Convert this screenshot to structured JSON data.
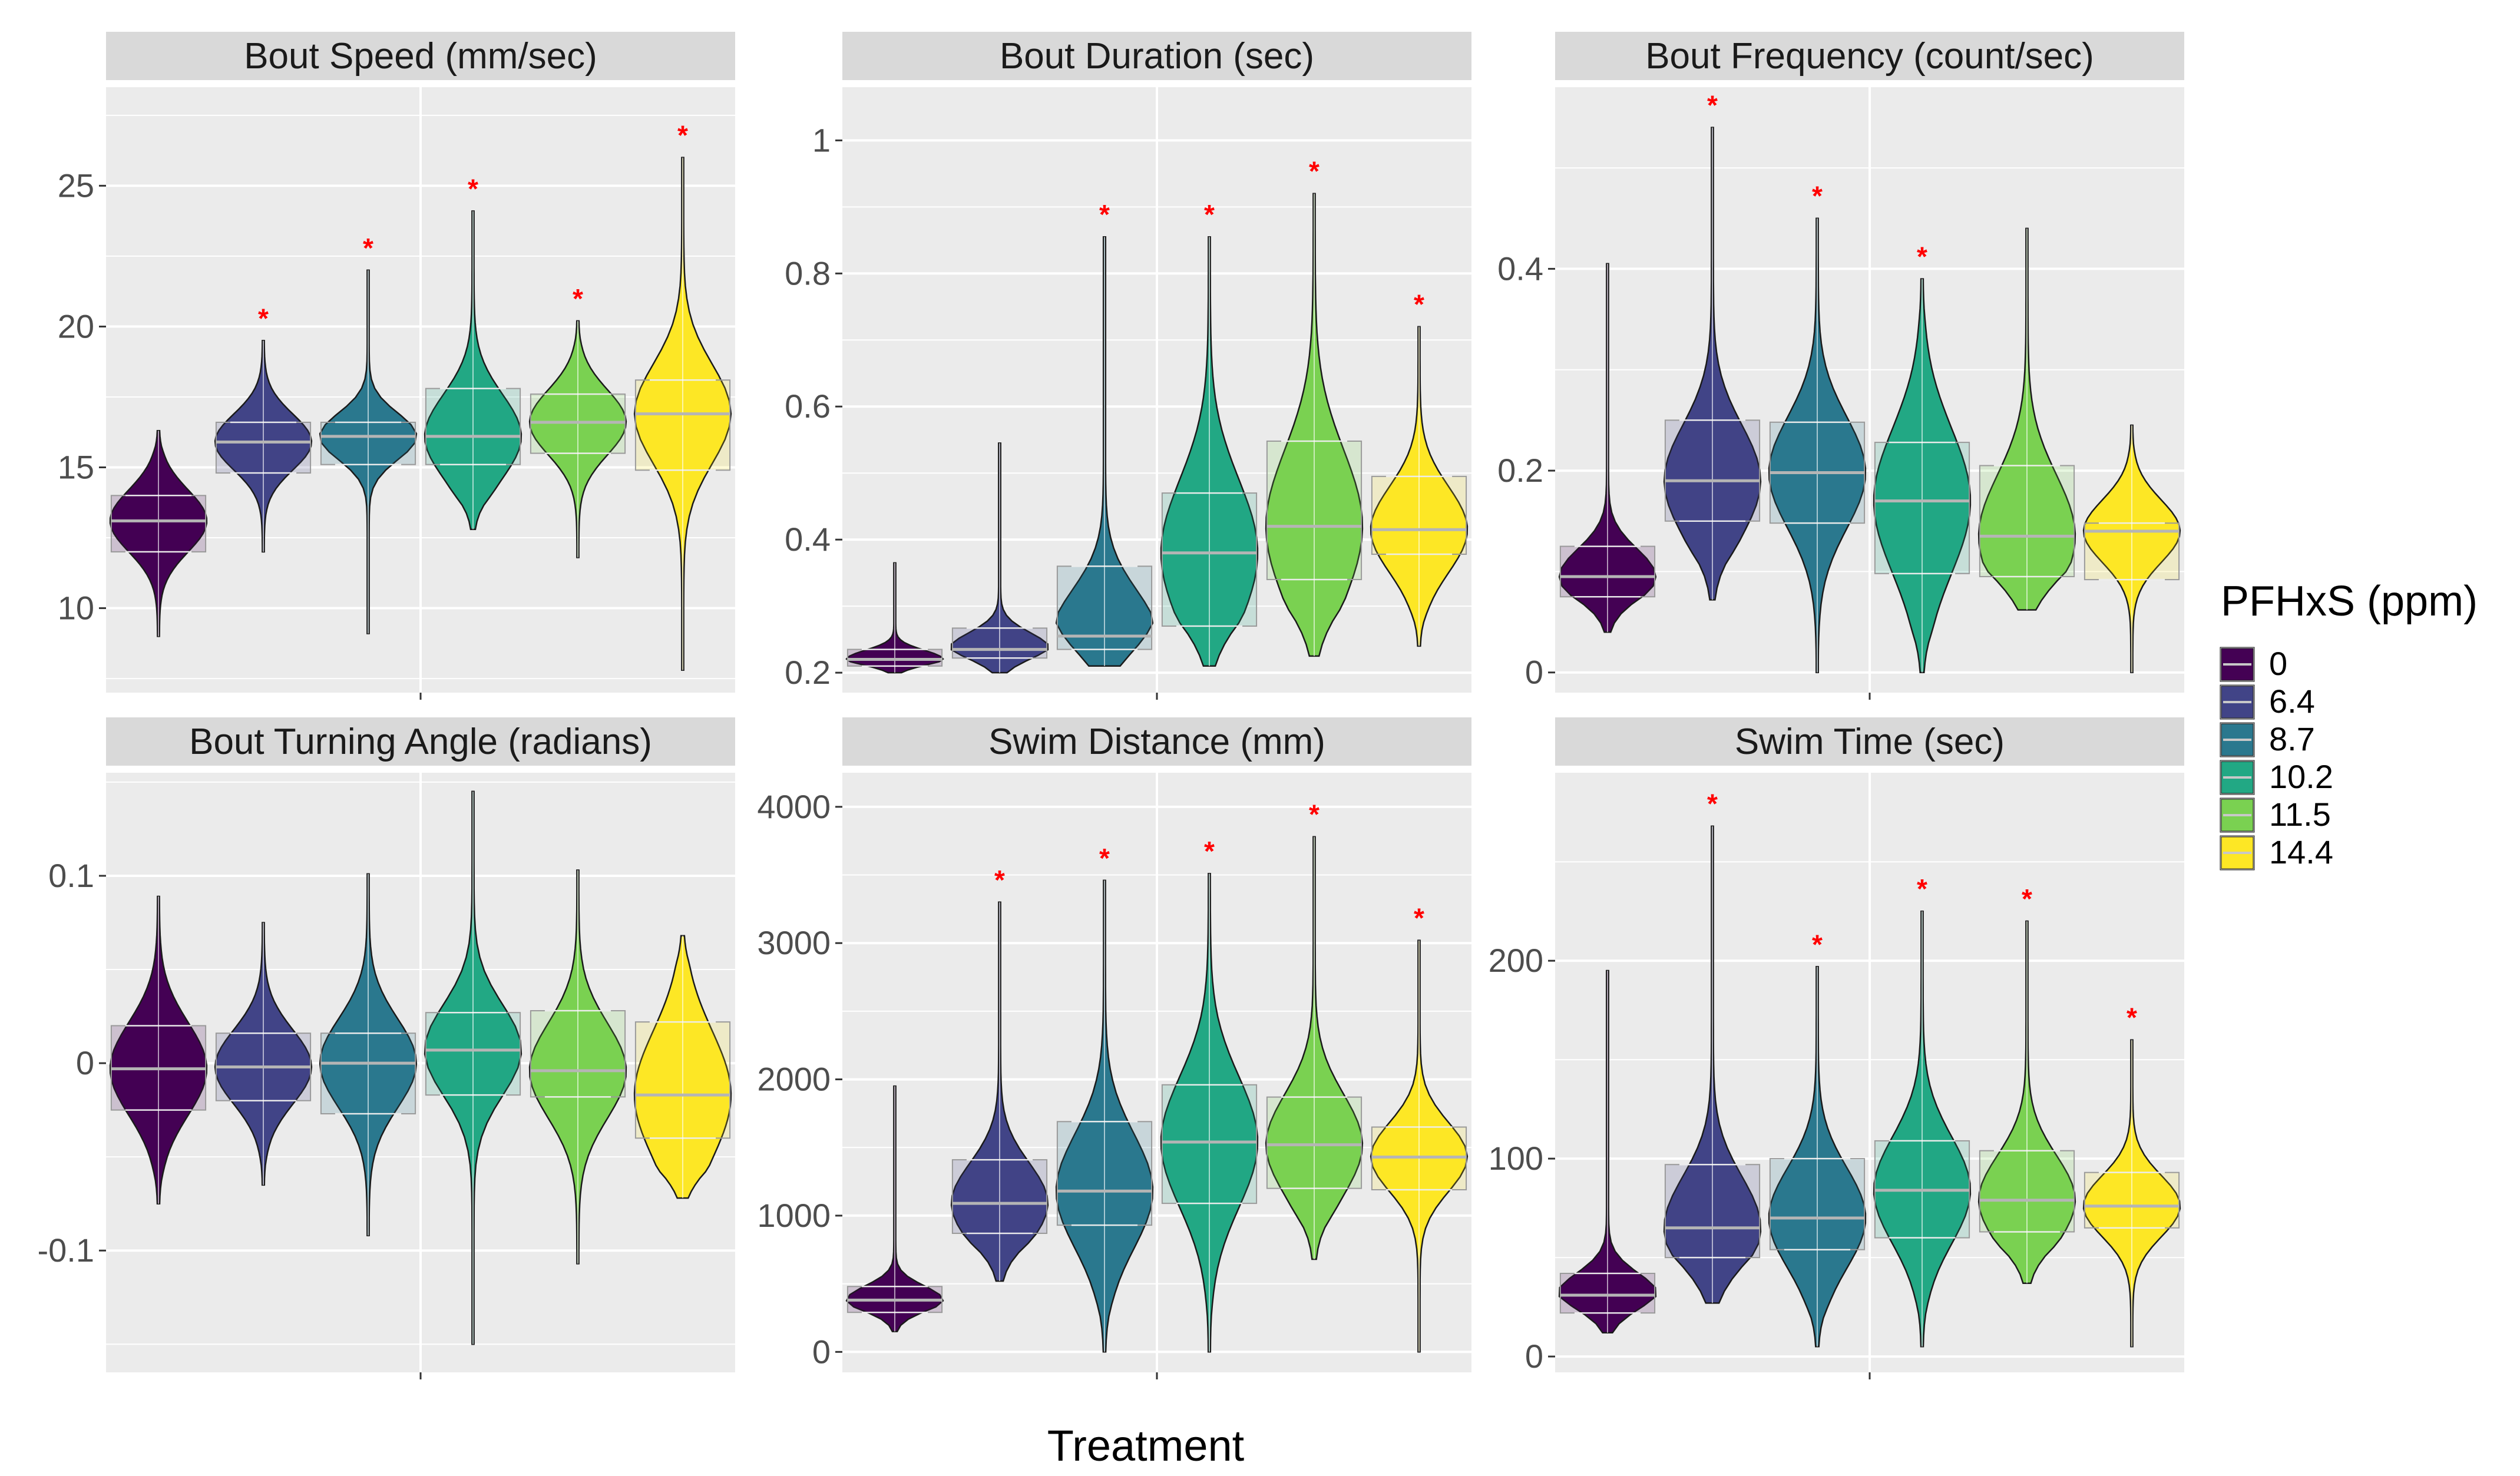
{
  "figure": {
    "xlabel": "Treatment",
    "legend": {
      "title": "PFHxS (ppm)",
      "entries": [
        {
          "label": "0",
          "color": "#440154"
        },
        {
          "label": "6.4",
          "color": "#414487"
        },
        {
          "label": "8.7",
          "color": "#2a788e"
        },
        {
          "label": "10.2",
          "color": "#22a884"
        },
        {
          "label": "11.5",
          "color": "#7ad151"
        },
        {
          "label": "14.4",
          "color": "#fde725"
        }
      ]
    },
    "significance_marker": "*"
  },
  "chart_data": [
    {
      "type": "violin",
      "title": "Bout Speed (mm/sec)",
      "ylim": [
        7,
        28.5
      ],
      "yticks": [
        10,
        15,
        20,
        25
      ],
      "groups": [
        "0",
        "6.4",
        "8.7",
        "10.2",
        "11.5",
        "14.4"
      ],
      "series": [
        {
          "group": "0",
          "min": 9.0,
          "q1": 12.0,
          "median": 13.1,
          "q3": 14.0,
          "max": 16.3,
          "significant": false
        },
        {
          "group": "6.4",
          "min": 12.0,
          "q1": 14.8,
          "median": 15.9,
          "q3": 16.6,
          "max": 19.5,
          "significant": true
        },
        {
          "group": "8.7",
          "min": 9.1,
          "q1": 15.1,
          "median": 16.1,
          "q3": 16.6,
          "max": 22.0,
          "significant": true
        },
        {
          "group": "10.2",
          "min": 12.8,
          "q1": 15.1,
          "median": 16.1,
          "q3": 17.8,
          "max": 24.1,
          "significant": true
        },
        {
          "group": "11.5",
          "min": 11.8,
          "q1": 15.5,
          "median": 16.6,
          "q3": 17.6,
          "max": 20.2,
          "significant": true
        },
        {
          "group": "14.4",
          "min": 7.8,
          "q1": 14.9,
          "median": 16.9,
          "q3": 18.1,
          "max": 26.0,
          "significant": true
        }
      ]
    },
    {
      "type": "violin",
      "title": "Bout Duration (sec)",
      "ylim": [
        0.17,
        1.08
      ],
      "yticks": [
        0.2,
        0.4,
        0.6,
        0.8,
        1
      ],
      "groups": [
        "0",
        "6.4",
        "8.7",
        "10.2",
        "11.5",
        "14.4"
      ],
      "series": [
        {
          "group": "0",
          "min": 0.2,
          "q1": 0.21,
          "median": 0.22,
          "q3": 0.235,
          "max": 0.365,
          "significant": false
        },
        {
          "group": "6.4",
          "min": 0.2,
          "q1": 0.222,
          "median": 0.235,
          "q3": 0.267,
          "max": 0.545,
          "significant": false
        },
        {
          "group": "8.7",
          "min": 0.21,
          "q1": 0.235,
          "median": 0.255,
          "q3": 0.36,
          "max": 0.855,
          "significant": true
        },
        {
          "group": "10.2",
          "min": 0.21,
          "q1": 0.27,
          "median": 0.38,
          "q3": 0.47,
          "max": 0.855,
          "significant": true
        },
        {
          "group": "11.5",
          "min": 0.225,
          "q1": 0.34,
          "median": 0.42,
          "q3": 0.548,
          "max": 0.92,
          "significant": true
        },
        {
          "group": "14.4",
          "min": 0.24,
          "q1": 0.378,
          "median": 0.415,
          "q3": 0.495,
          "max": 0.72,
          "significant": true
        }
      ]
    },
    {
      "type": "violin",
      "title": "Bout Frequency (count/sec)",
      "ylim": [
        -0.02,
        0.58
      ],
      "yticks": [
        0,
        0.2,
        0.4
      ],
      "groups": [
        "0",
        "6.4",
        "8.7",
        "10.2",
        "11.5",
        "14.4"
      ],
      "series": [
        {
          "group": "0",
          "min": 0.04,
          "q1": 0.075,
          "median": 0.095,
          "q3": 0.125,
          "max": 0.405,
          "significant": false
        },
        {
          "group": "6.4",
          "min": 0.072,
          "q1": 0.15,
          "median": 0.19,
          "q3": 0.25,
          "max": 0.54,
          "significant": true
        },
        {
          "group": "8.7",
          "min": 0.0,
          "q1": 0.148,
          "median": 0.198,
          "q3": 0.248,
          "max": 0.45,
          "significant": true
        },
        {
          "group": "10.2",
          "min": 0.0,
          "q1": 0.098,
          "median": 0.17,
          "q3": 0.228,
          "max": 0.39,
          "significant": true
        },
        {
          "group": "11.5",
          "min": 0.062,
          "q1": 0.095,
          "median": 0.135,
          "q3": 0.205,
          "max": 0.44,
          "significant": false
        },
        {
          "group": "14.4",
          "min": 0.0,
          "q1": 0.092,
          "median": 0.14,
          "q3": 0.148,
          "max": 0.245,
          "significant": false
        }
      ]
    },
    {
      "type": "violin",
      "title": "Bout Turning Angle (radians)",
      "ylim": [
        -0.165,
        0.155
      ],
      "yticks": [
        -0.1,
        0,
        0.1
      ],
      "groups": [
        "0",
        "6.4",
        "8.7",
        "10.2",
        "11.5",
        "14.4"
      ],
      "series": [
        {
          "group": "0",
          "min": -0.075,
          "q1": -0.025,
          "median": -0.003,
          "q3": 0.02,
          "max": 0.089,
          "significant": false
        },
        {
          "group": "6.4",
          "min": -0.065,
          "q1": -0.02,
          "median": -0.002,
          "q3": 0.016,
          "max": 0.075,
          "significant": false
        },
        {
          "group": "8.7",
          "min": -0.092,
          "q1": -0.027,
          "median": 0.0,
          "q3": 0.016,
          "max": 0.101,
          "significant": false
        },
        {
          "group": "10.2",
          "min": -0.15,
          "q1": -0.017,
          "median": 0.007,
          "q3": 0.027,
          "max": 0.145,
          "significant": false
        },
        {
          "group": "11.5",
          "min": -0.107,
          "q1": -0.018,
          "median": -0.004,
          "q3": 0.028,
          "max": 0.103,
          "significant": false
        },
        {
          "group": "14.4",
          "min": -0.072,
          "q1": -0.04,
          "median": -0.017,
          "q3": 0.022,
          "max": 0.068,
          "significant": false
        }
      ]
    },
    {
      "type": "violin",
      "title": "Swim Distance (mm)",
      "ylim": [
        -150,
        4250
      ],
      "yticks": [
        0,
        1000,
        2000,
        3000,
        4000
      ],
      "groups": [
        "0",
        "6.4",
        "8.7",
        "10.2",
        "11.5",
        "14.4"
      ],
      "series": [
        {
          "group": "0",
          "min": 150,
          "q1": 290,
          "median": 380,
          "q3": 480,
          "max": 1950,
          "significant": false
        },
        {
          "group": "6.4",
          "min": 520,
          "q1": 870,
          "median": 1090,
          "q3": 1410,
          "max": 3300,
          "significant": true
        },
        {
          "group": "8.7",
          "min": 0,
          "q1": 930,
          "median": 1180,
          "q3": 1690,
          "max": 3460,
          "significant": true
        },
        {
          "group": "10.2",
          "min": 0,
          "q1": 1090,
          "median": 1540,
          "q3": 1960,
          "max": 3510,
          "significant": true
        },
        {
          "group": "11.5",
          "min": 680,
          "q1": 1200,
          "median": 1520,
          "q3": 1870,
          "max": 3780,
          "significant": true
        },
        {
          "group": "14.4",
          "min": 0,
          "q1": 1190,
          "median": 1430,
          "q3": 1650,
          "max": 3020,
          "significant": true
        }
      ]
    },
    {
      "type": "violin",
      "title": "Swim Time (sec)",
      "ylim": [
        -8,
        295
      ],
      "yticks": [
        0,
        100,
        200
      ],
      "groups": [
        "0",
        "6.4",
        "8.7",
        "10.2",
        "11.5",
        "14.4"
      ],
      "series": [
        {
          "group": "0",
          "min": 12,
          "q1": 22,
          "median": 31,
          "q3": 42,
          "max": 195,
          "significant": false
        },
        {
          "group": "6.4",
          "min": 27,
          "q1": 50,
          "median": 65,
          "q3": 97,
          "max": 268,
          "significant": true
        },
        {
          "group": "8.7",
          "min": 5,
          "q1": 54,
          "median": 70,
          "q3": 100,
          "max": 197,
          "significant": true
        },
        {
          "group": "10.2",
          "min": 5,
          "q1": 60,
          "median": 84,
          "q3": 109,
          "max": 225,
          "significant": true
        },
        {
          "group": "11.5",
          "min": 37,
          "q1": 63,
          "median": 79,
          "q3": 104,
          "max": 220,
          "significant": true
        },
        {
          "group": "14.4",
          "min": 5,
          "q1": 65,
          "median": 76,
          "q3": 93,
          "max": 160,
          "significant": true
        }
      ]
    }
  ]
}
